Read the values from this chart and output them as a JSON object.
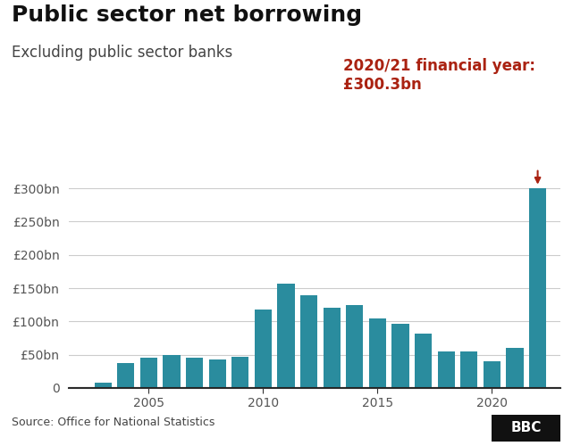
{
  "title": "Public sector net borrowing",
  "subtitle": "Excluding public sector banks",
  "source": "Source: Office for National Statistics",
  "bbc_label": "BBC",
  "bar_color": "#2a8c9e",
  "highlight_color": "#aa2211",
  "annotation_line1": "2020/21 financial year:",
  "annotation_line2": "£300.3bn",
  "years": [
    2003,
    2004,
    2005,
    2006,
    2007,
    2008,
    2009,
    2010,
    2011,
    2012,
    2013,
    2014,
    2015,
    2016,
    2017,
    2018,
    2019,
    2020,
    2021,
    2022
  ],
  "values": [
    8,
    37,
    45,
    50,
    45,
    43,
    47,
    118,
    157,
    140,
    120,
    125,
    105,
    97,
    82,
    55,
    55,
    40,
    60,
    300.3
  ],
  "yticks": [
    0,
    50,
    100,
    150,
    200,
    250,
    300
  ],
  "ytick_labels": [
    "0",
    "£50bn",
    "£100bn",
    "£150bn",
    "£200bn",
    "£250bn",
    "£300bn"
  ],
  "xtick_positions": [
    2005,
    2010,
    2015,
    2020
  ],
  "ylim": [
    0,
    335
  ],
  "xlim": [
    2001.5,
    2023.0
  ],
  "background_color": "#ffffff",
  "grid_color": "#cccccc",
  "title_fontsize": 18,
  "subtitle_fontsize": 12,
  "annotation_fontsize": 12,
  "tick_fontsize": 10,
  "source_fontsize": 9,
  "bar_width": 0.75
}
